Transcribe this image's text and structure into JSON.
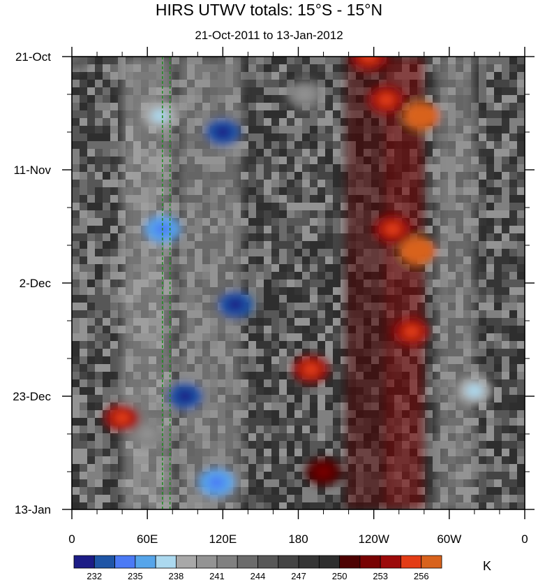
{
  "chart_data": {
    "type": "heatmap",
    "title": "HIRS UTWV totals: 15°S - 15°N",
    "subtitle": "21-Oct-2011 to 13-Jan-2012",
    "x_ticks": [
      "0",
      "60E",
      "120E",
      "180",
      "120W",
      "60W",
      "0"
    ],
    "x_tick_values": [
      0,
      60,
      120,
      180,
      240,
      300,
      360
    ],
    "xlim": [
      0,
      360
    ],
    "y_ticks": [
      "21-Oct",
      "11-Nov",
      "2-Dec",
      "23-Dec",
      "13-Jan"
    ],
    "y_tick_values": [
      "2011-10-21",
      "2011-11-11",
      "2011-12-02",
      "2011-12-23",
      "2012-01-13"
    ],
    "ylim": [
      "2011-10-21",
      "2012-01-13"
    ],
    "colorbar": {
      "unit": "K",
      "labels": [
        "232",
        "235",
        "238",
        "241",
        "244",
        "247",
        "250",
        "253",
        "256"
      ],
      "levels": [
        230.5,
        232,
        233.5,
        235,
        236.5,
        238,
        239.5,
        241,
        242.5,
        244,
        245.5,
        247,
        248.5,
        250,
        251.5,
        253,
        254.5,
        256,
        257.5
      ],
      "colors": [
        "#1c1c86",
        "#1f55a6",
        "#4b7af5",
        "#56a5ea",
        "#acd9ef",
        "#a8a8a8",
        "#939393",
        "#808080",
        "#6b6b6b",
        "#575757",
        "#444444",
        "#353535",
        "#2e2e2e",
        "#4d0202",
        "#780303",
        "#9c0a0a",
        "#e33c16",
        "#d8621c"
      ]
    },
    "reference_lines": [
      {
        "x": 72
      },
      {
        "x": 78
      }
    ],
    "features": [
      {
        "lon": 0,
        "date": "2011-10-21",
        "value": 244
      },
      {
        "lon": 236,
        "date": "2011-10-21",
        "value": 253
      },
      {
        "lon": 250,
        "date": "2011-10-29",
        "value": 254
      },
      {
        "lon": 278,
        "date": "2011-11-01",
        "value": 256
      },
      {
        "lon": 120,
        "date": "2011-11-04",
        "value": 232
      },
      {
        "lon": 70,
        "date": "2011-11-01",
        "value": 238
      },
      {
        "lon": 255,
        "date": "2011-11-22",
        "value": 253
      },
      {
        "lon": 275,
        "date": "2011-11-26",
        "value": 256
      },
      {
        "lon": 72,
        "date": "2011-11-22",
        "value": 235
      },
      {
        "lon": 130,
        "date": "2011-12-06",
        "value": 232
      },
      {
        "lon": 270,
        "date": "2011-12-11",
        "value": 254
      },
      {
        "lon": 90,
        "date": "2011-12-23",
        "value": 232
      },
      {
        "lon": 190,
        "date": "2011-12-18",
        "value": 254
      },
      {
        "lon": 60,
        "date": "2011-12-30",
        "value": 241
      },
      {
        "lon": 40,
        "date": "2011-12-27",
        "value": 254
      },
      {
        "lon": 115,
        "date": "2012-01-08",
        "value": 235
      },
      {
        "lon": 200,
        "date": "2012-01-06",
        "value": 251
      },
      {
        "lon": 320,
        "date": "2011-12-22",
        "value": 238
      },
      {
        "lon": 185,
        "date": "2011-10-28",
        "value": 241
      }
    ]
  }
}
